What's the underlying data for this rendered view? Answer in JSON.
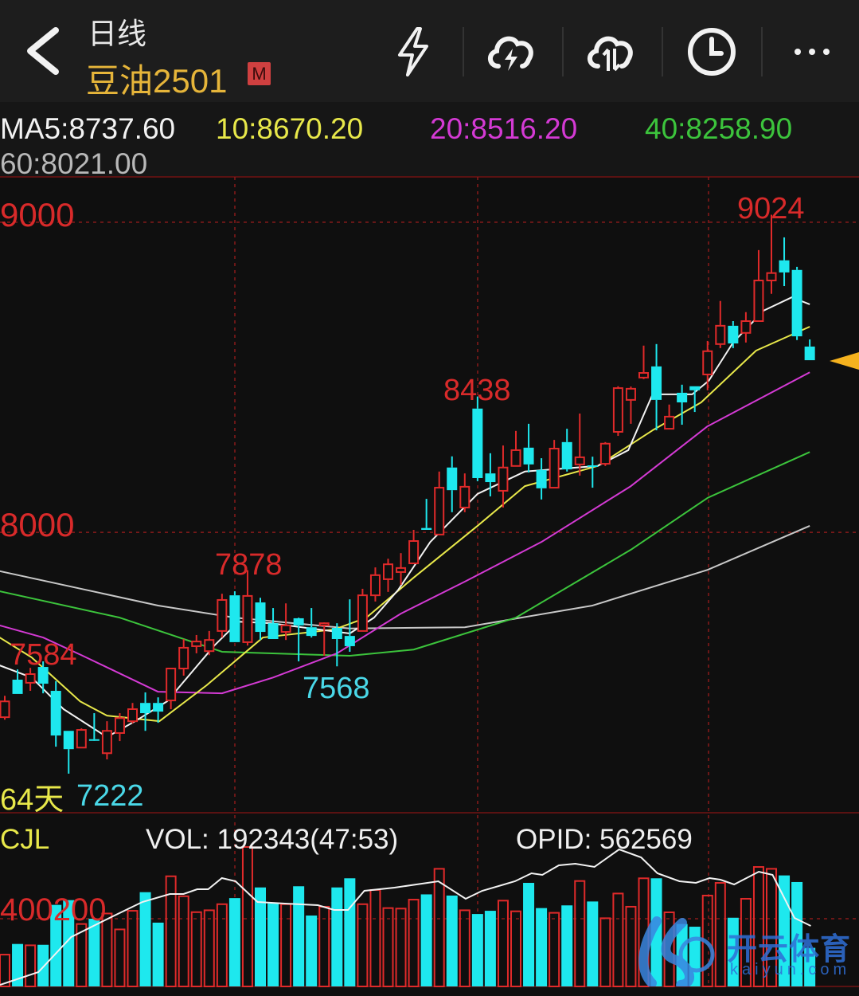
{
  "header": {
    "period": "日线",
    "symbol": "豆油2501",
    "badge": "M",
    "icons": [
      "back-chevron-icon",
      "lightning-icon",
      "cloud-lightning-icon",
      "cloud-sync-icon",
      "clock-icon",
      "more-dots-icon"
    ]
  },
  "ma_legend": {
    "ma5": "MA5:8737.60",
    "ma10": "10:8670.20",
    "ma20": "20:8516.20",
    "ma40": "40:8258.90",
    "ma60": "60:8021.00"
  },
  "colors": {
    "up": "#e02a2a",
    "down": "#1ee8ee",
    "ma5": "#f2f2f2",
    "ma10": "#e8e84a",
    "ma20": "#d43ad4",
    "ma40": "#3cc43c",
    "ma60": "#c8c8c8",
    "symbol": "#e6b53a",
    "grid": "#8a1a1a"
  },
  "chart_data": [
    {
      "type": "candlestick",
      "title": "",
      "y_ticks": [
        "9000",
        "8000"
      ],
      "ylim": [
        7096,
        9146
      ],
      "days_label": "64天",
      "annotations": {
        "high_9024": "9024",
        "high_8438": "8438",
        "high_7878": "7878",
        "high_7584": "7584",
        "low_7568": "7568",
        "low_7222": "7222"
      },
      "candles_ohlc": [
        [
          7404,
          7473,
          7396,
          7455
        ],
        [
          7525,
          7558,
          7479,
          7479
        ],
        [
          7515,
          7563,
          7489,
          7543
        ],
        [
          7566,
          7584,
          7481,
          7512
        ],
        [
          7489,
          7520,
          7309,
          7345
        ],
        [
          7360,
          7360,
          7222,
          7301
        ],
        [
          7306,
          7368,
          7306,
          7363
        ],
        [
          7333,
          7417,
          7328,
          7330
        ],
        [
          7288,
          7391,
          7268,
          7360
        ],
        [
          7353,
          7417,
          7327,
          7401
        ],
        [
          7391,
          7450,
          7384,
          7430
        ],
        [
          7450,
          7484,
          7360,
          7417
        ],
        [
          7450,
          7468,
          7386,
          7422
        ],
        [
          7458,
          7561,
          7430,
          7561
        ],
        [
          7561,
          7656,
          7538,
          7628
        ],
        [
          7633,
          7669,
          7610,
          7648
        ],
        [
          7617,
          7682,
          7604,
          7653
        ],
        [
          7682,
          7802,
          7661,
          7782
        ],
        [
          7797,
          7810,
          7646,
          7646
        ],
        [
          7646,
          7878,
          7635,
          7795
        ],
        [
          7774,
          7789,
          7653,
          7679
        ],
        [
          7707,
          7756,
          7656,
          7656
        ],
        [
          7679,
          7771,
          7653,
          7700
        ],
        [
          7723,
          7725,
          7584,
          7700
        ],
        [
          7694,
          7756,
          7661,
          7666
        ],
        [
          7700,
          7710,
          7602,
          7707
        ],
        [
          7692,
          7707,
          7568,
          7656
        ],
        [
          7666,
          7784,
          7615,
          7633
        ],
        [
          7682,
          7818,
          7682,
          7797
        ],
        [
          7797,
          7887,
          7777,
          7862
        ],
        [
          7849,
          7915,
          7808,
          7897
        ],
        [
          7872,
          7933,
          7831,
          7885
        ],
        [
          7900,
          8008,
          7900,
          7972
        ],
        [
          8014,
          8108,
          8008,
          8008
        ],
        [
          7993,
          8196,
          7993,
          8144
        ],
        [
          8209,
          8245,
          8065,
          8136
        ],
        [
          8080,
          8190,
          8065,
          8147
        ],
        [
          8399,
          8438,
          8165,
          8175
        ],
        [
          8190,
          8255,
          8116,
          8162
        ],
        [
          8134,
          8280,
          8080,
          8209
        ],
        [
          8214,
          8327,
          8214,
          8265
        ],
        [
          8273,
          8350,
          8193,
          8219
        ],
        [
          8201,
          8239,
          8106,
          8142
        ],
        [
          8144,
          8298,
          8144,
          8270
        ],
        [
          8291,
          8334,
          8196,
          8203
        ],
        [
          8219,
          8383,
          8183,
          8242
        ],
        [
          8216,
          8244,
          8144,
          8211
        ],
        [
          8221,
          8291,
          8214,
          8286
        ],
        [
          8324,
          8471,
          8311,
          8465
        ],
        [
          8427,
          8470,
          8350,
          8463
        ],
        [
          8499,
          8602,
          8494,
          8514
        ],
        [
          8535,
          8607,
          8329,
          8427
        ],
        [
          8334,
          8412,
          8334,
          8373
        ],
        [
          8450,
          8476,
          8347,
          8419
        ],
        [
          8471,
          8471,
          8388,
          8458
        ],
        [
          8509,
          8617,
          8458,
          8584
        ],
        [
          8607,
          8746,
          8594,
          8666
        ],
        [
          8666,
          8681,
          8594,
          8609
        ],
        [
          8643,
          8710,
          8612,
          8681
        ],
        [
          8681,
          8910,
          8681,
          8812
        ],
        [
          8812,
          9024,
          8769,
          8836
        ],
        [
          8877,
          8951,
          8794,
          8838
        ],
        [
          8846,
          8856,
          8620,
          8632
        ],
        [
          8599,
          8622,
          8555,
          8555
        ]
      ],
      "moving_averages": {
        "ma5": [
          [
            0.6,
            7571
          ],
          [
            3.1,
            7532
          ],
          [
            5.6,
            7430
          ],
          [
            9.0,
            7340
          ],
          [
            11.2,
            7391
          ],
          [
            13.7,
            7455
          ],
          [
            17.4,
            7635
          ],
          [
            19.3,
            7712
          ],
          [
            21.8,
            7707
          ],
          [
            28.0,
            7674
          ],
          [
            29.9,
            7725
          ],
          [
            31.8,
            7815
          ],
          [
            34.3,
            7969
          ],
          [
            38.0,
            8124
          ],
          [
            41.7,
            8196
          ],
          [
            47.4,
            8214
          ],
          [
            49.8,
            8265
          ],
          [
            51.7,
            8445
          ],
          [
            54.8,
            8445
          ],
          [
            56.1,
            8489
          ],
          [
            58.0,
            8612
          ],
          [
            60.4,
            8715
          ],
          [
            62.6,
            8758
          ],
          [
            64,
            8735
          ]
        ],
        "ma10": [
          [
            0.6,
            7661
          ],
          [
            3.1,
            7597
          ],
          [
            6.9,
            7455
          ],
          [
            9.0,
            7409
          ],
          [
            13.1,
            7391
          ],
          [
            16.8,
            7507
          ],
          [
            21.2,
            7661
          ],
          [
            26.8,
            7687
          ],
          [
            29.3,
            7725
          ],
          [
            33.0,
            7854
          ],
          [
            38.0,
            8021
          ],
          [
            41.7,
            8149
          ],
          [
            47.4,
            8214
          ],
          [
            51.7,
            8329
          ],
          [
            55.5,
            8419
          ],
          [
            59.8,
            8586
          ],
          [
            64,
            8663
          ]
        ],
        "ma20": [
          [
            0.6,
            7700
          ],
          [
            4,
            7661
          ],
          [
            7,
            7604
          ],
          [
            13,
            7486
          ],
          [
            18,
            7481
          ],
          [
            22,
            7532
          ],
          [
            27,
            7610
          ],
          [
            32,
            7738
          ],
          [
            37,
            7841
          ],
          [
            43,
            7969
          ],
          [
            50,
            8149
          ],
          [
            56,
            8342
          ],
          [
            64,
            8516
          ]
        ],
        "ma40": [
          [
            0.6,
            7810
          ],
          [
            10,
            7725
          ],
          [
            18,
            7615
          ],
          [
            28,
            7602
          ],
          [
            33,
            7622
          ],
          [
            41,
            7725
          ],
          [
            50,
            7944
          ],
          [
            56,
            8111
          ],
          [
            64,
            8259
          ]
        ],
        "ma60": [
          [
            0.6,
            7875
          ],
          [
            13,
            7764
          ],
          [
            19,
            7725
          ],
          [
            28,
            7690
          ],
          [
            37,
            7694
          ],
          [
            47,
            7764
          ],
          [
            56,
            7879
          ],
          [
            64,
            8021
          ]
        ]
      }
    },
    {
      "type": "bar",
      "indicator": "CJL",
      "vol_label": "VOL: 192343(47:53)",
      "opid_label": "OPID: 562569",
      "y_tick": "400200",
      "y_tick_value": 400200,
      "volumes": [
        188000,
        251000,
        243000,
        246000,
        482000,
        510000,
        369000,
        400000,
        431000,
        337000,
        447000,
        557000,
        377000,
        651000,
        533000,
        439000,
        450000,
        486000,
        522000,
        824000,
        585000,
        491000,
        486000,
        592000,
        419000,
        471000,
        585000,
        639000,
        486000,
        570000,
        463000,
        460000,
        513000,
        544000,
        695000,
        537000,
        450000,
        428000,
        447000,
        507000,
        444000,
        612000,
        463000,
        435000,
        479000,
        623000,
        502000,
        403000,
        549000,
        471000,
        639000,
        639000,
        438000,
        369000,
        353000,
        537000,
        612000,
        406000,
        518000,
        706000,
        695000,
        656000,
        617000,
        228000
      ],
      "opid_level_fraction": [
        [
          0.63,
          0.01
        ],
        [
          3.63,
          0.09
        ],
        [
          6.2,
          0.31
        ],
        [
          9.2,
          0.43
        ],
        [
          11.77,
          0.53
        ],
        [
          13.92,
          0.58
        ],
        [
          14.99,
          0.58
        ],
        [
          16.06,
          0.61
        ],
        [
          16.92,
          0.61
        ],
        [
          17.99,
          0.68
        ],
        [
          19.06,
          0.66
        ],
        [
          20.78,
          0.53
        ],
        [
          22.93,
          0.52
        ],
        [
          25.5,
          0.51
        ],
        [
          26.78,
          0.48
        ],
        [
          27.86,
          0.48
        ],
        [
          29.14,
          0.6
        ],
        [
          31.5,
          0.62
        ],
        [
          33.22,
          0.64
        ],
        [
          34.93,
          0.66
        ],
        [
          37.07,
          0.55
        ],
        [
          38.36,
          0.6
        ],
        [
          40.93,
          0.66
        ],
        [
          42.22,
          0.71
        ],
        [
          43.07,
          0.7
        ],
        [
          44.36,
          0.76
        ],
        [
          45.65,
          0.77
        ],
        [
          47.15,
          0.75
        ],
        [
          49.08,
          0.86
        ],
        [
          50.8,
          0.81
        ],
        [
          52.08,
          0.71
        ],
        [
          53.8,
          0.66
        ],
        [
          55.09,
          0.65
        ],
        [
          56.16,
          0.68
        ],
        [
          57.01,
          0.67
        ],
        [
          58.08,
          0.64
        ],
        [
          60.01,
          0.72
        ],
        [
          61.09,
          0.7
        ],
        [
          62.8,
          0.43
        ],
        [
          64.08,
          0.38
        ]
      ]
    }
  ],
  "watermark": {
    "cn": "开云体育",
    "en": "kaiyun.com"
  }
}
